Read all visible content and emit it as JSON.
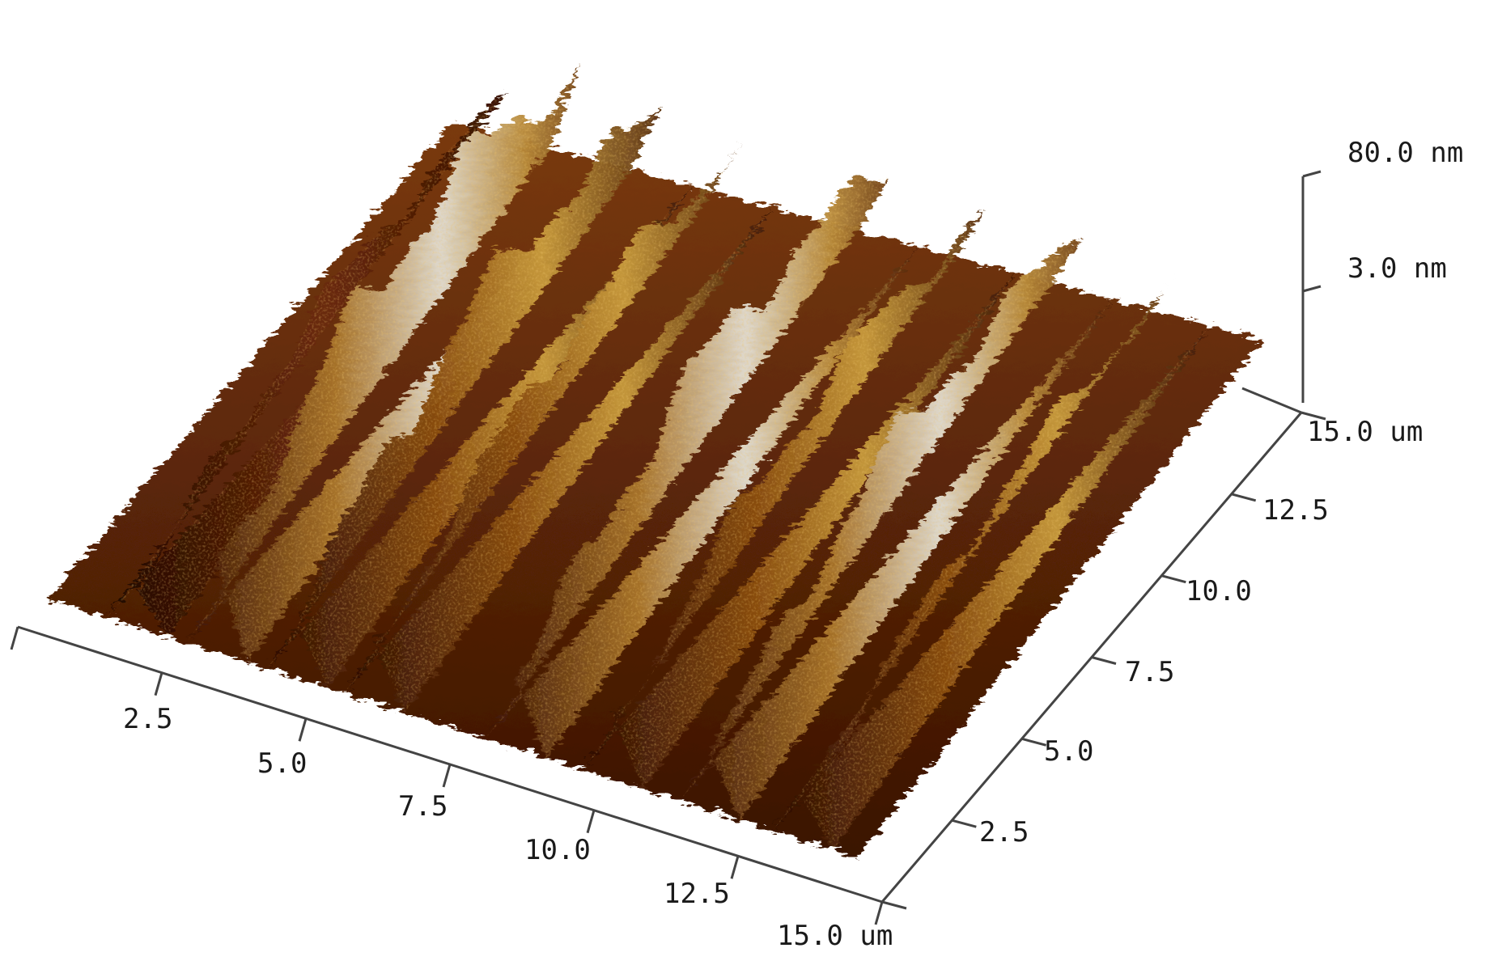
{
  "x_axis": {
    "ticks": [
      "2.5",
      "5.0",
      "7.5",
      "10.0",
      "12.5"
    ],
    "end_label": "15.0 um"
  },
  "y_axis": {
    "ticks": [
      "2.5",
      "5.0",
      "7.5",
      "10.0",
      "12.5"
    ],
    "end_label": "15.0 um"
  },
  "z_axis": {
    "max_label": "80.0 nm",
    "mid_label": "3.0 nm"
  },
  "colors": {
    "background": "#ffffff",
    "axis": "#444444",
    "surface_dark": "#2a0a02",
    "surface_mid": "#8a4a0c",
    "surface_light": "#c9a24a",
    "surface_highlight": "#e8e4dc"
  },
  "ridges": [
    {
      "x1": 0.03,
      "y1": 0.0,
      "x2": 0.2,
      "y2": 1.0,
      "height": 0.42,
      "shade": "dark"
    },
    {
      "x1": 0.12,
      "y1": 0.0,
      "x2": 0.32,
      "y2": 1.0,
      "height": 0.85,
      "shade": "light"
    },
    {
      "x1": 0.22,
      "y1": 0.0,
      "x2": 0.42,
      "y2": 1.0,
      "height": 0.7,
      "shade": "mid"
    },
    {
      "x1": 0.32,
      "y1": 0.0,
      "x2": 0.5,
      "y2": 1.0,
      "height": 0.55,
      "shade": "mid"
    },
    {
      "x1": 0.5,
      "y1": 0.0,
      "x2": 0.66,
      "y2": 1.0,
      "height": 0.72,
      "shade": "light"
    },
    {
      "x1": 0.62,
      "y1": 0.0,
      "x2": 0.78,
      "y2": 1.0,
      "height": 0.55,
      "shade": "mid"
    },
    {
      "x1": 0.74,
      "y1": 0.0,
      "x2": 0.9,
      "y2": 1.0,
      "height": 0.6,
      "shade": "light"
    },
    {
      "x1": 0.86,
      "y1": 0.0,
      "x2": 1.0,
      "y2": 1.0,
      "height": 0.4,
      "shade": "mid"
    }
  ]
}
